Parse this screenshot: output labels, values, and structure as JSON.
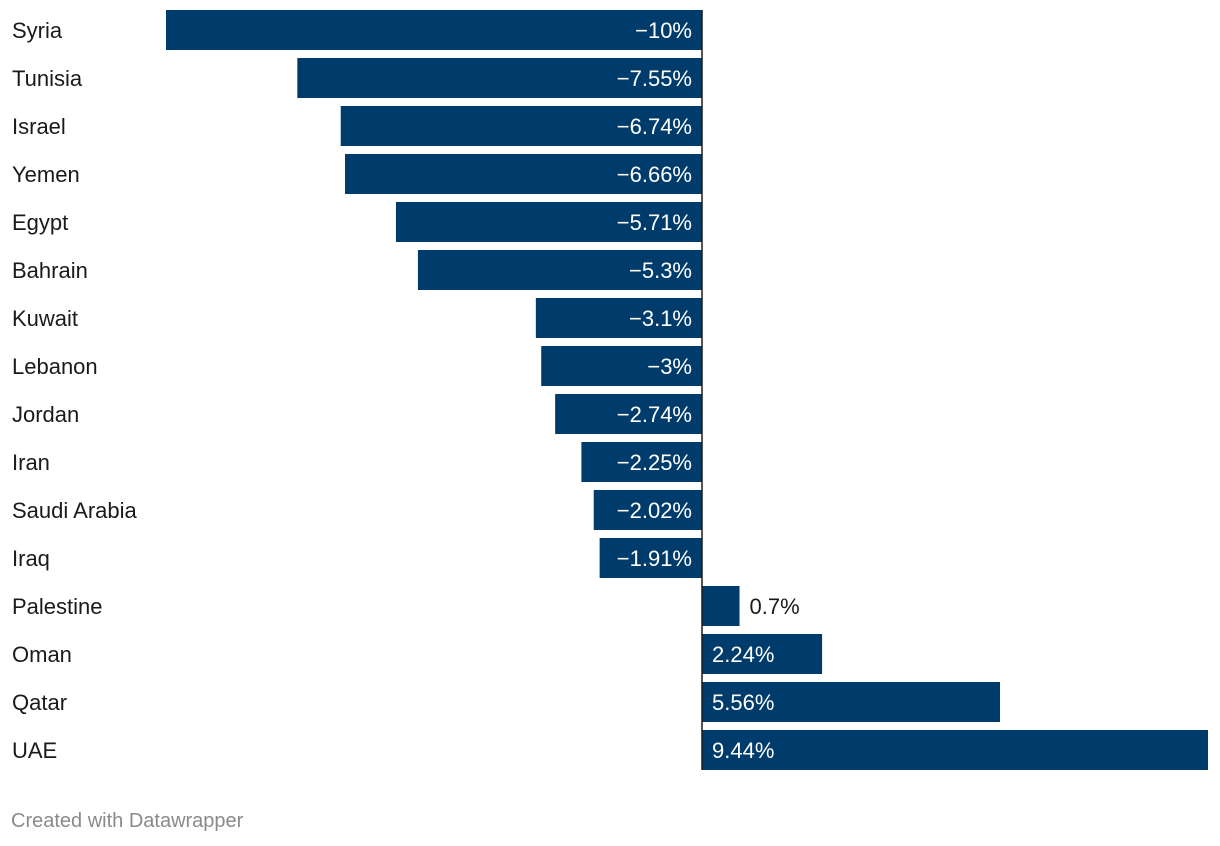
{
  "chart_data": {
    "type": "bar",
    "orientation": "horizontal",
    "categories": [
      "Syria",
      "Tunisia",
      "Israel",
      "Yemen",
      "Egypt",
      "Bahrain",
      "Kuwait",
      "Lebanon",
      "Jordan",
      "Iran",
      "Saudi Arabia",
      "Iraq",
      "Palestine",
      "Oman",
      "Qatar",
      "UAE"
    ],
    "values": [
      -10,
      -7.55,
      -6.74,
      -6.66,
      -5.71,
      -5.3,
      -3.1,
      -3,
      -2.74,
      -2.25,
      -2.02,
      -1.91,
      0.7,
      2.24,
      5.56,
      9.44
    ],
    "value_labels": [
      "−10%",
      "−7.55%",
      "−6.74%",
      "−6.66%",
      "−5.71%",
      "−5.3%",
      "−3.1%",
      "−3%",
      "−2.74%",
      "−2.25%",
      "−2.02%",
      "−1.91%",
      "0.7%",
      "2.24%",
      "5.56%",
      "9.44%"
    ],
    "xlim": [
      -10,
      9.44
    ],
    "grid": false,
    "legend": "none",
    "bar_color": "#003c6b",
    "title": "",
    "xlabel": "",
    "ylabel": ""
  },
  "footer": {
    "credit": "Created with Datawrapper"
  }
}
